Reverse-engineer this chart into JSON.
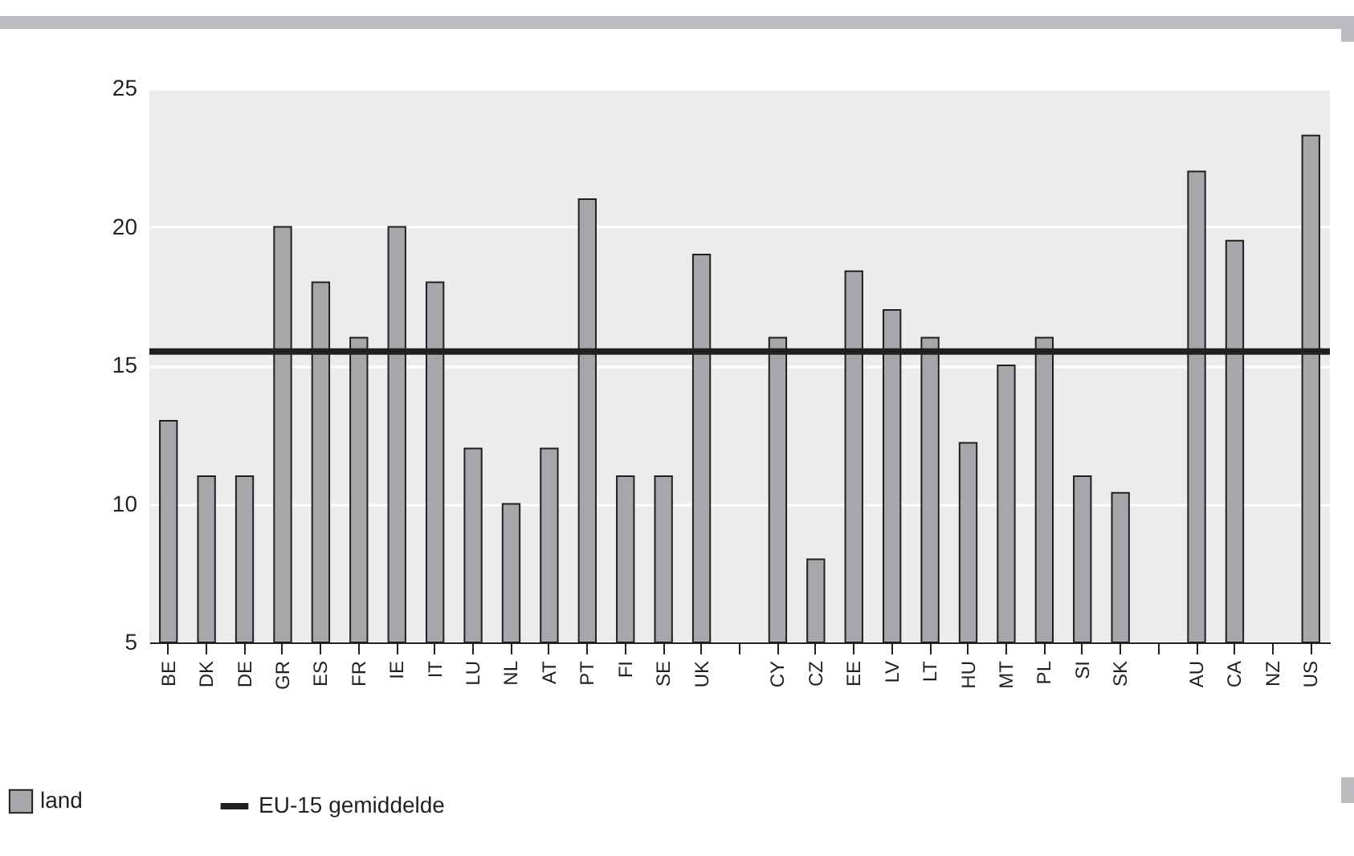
{
  "chart_data": {
    "type": "bar",
    "categories": [
      "BE",
      "DK",
      "DE",
      "GR",
      "ES",
      "FR",
      "IE",
      "IT",
      "LU",
      "NL",
      "AT",
      "PT",
      "FI",
      "SE",
      "UK",
      null,
      "CY",
      "CZ",
      "EE",
      "LV",
      "LT",
      "HU",
      "MT",
      "PL",
      "SI",
      "SK",
      null,
      "AU",
      "CA",
      "NZ",
      "US"
    ],
    "series": [
      {
        "name": "land",
        "color": "#a6a7aa",
        "values": [
          13,
          11,
          11,
          20,
          18,
          16,
          20,
          18,
          12,
          10,
          12,
          21,
          11,
          11,
          19,
          null,
          16,
          8,
          18.4,
          17,
          16,
          12.2,
          15,
          16,
          11,
          10.4,
          null,
          22,
          19.5,
          null,
          23.3
        ]
      }
    ],
    "ref_lines": [
      {
        "axis": "y",
        "value": 15.5,
        "label": "EU-15 gemiddelde",
        "color": "#231f20"
      }
    ],
    "ylim": [
      5,
      25
    ],
    "yticks": [
      5,
      10,
      15,
      20,
      25
    ],
    "grid": "y",
    "legend": "bottom left"
  }
}
